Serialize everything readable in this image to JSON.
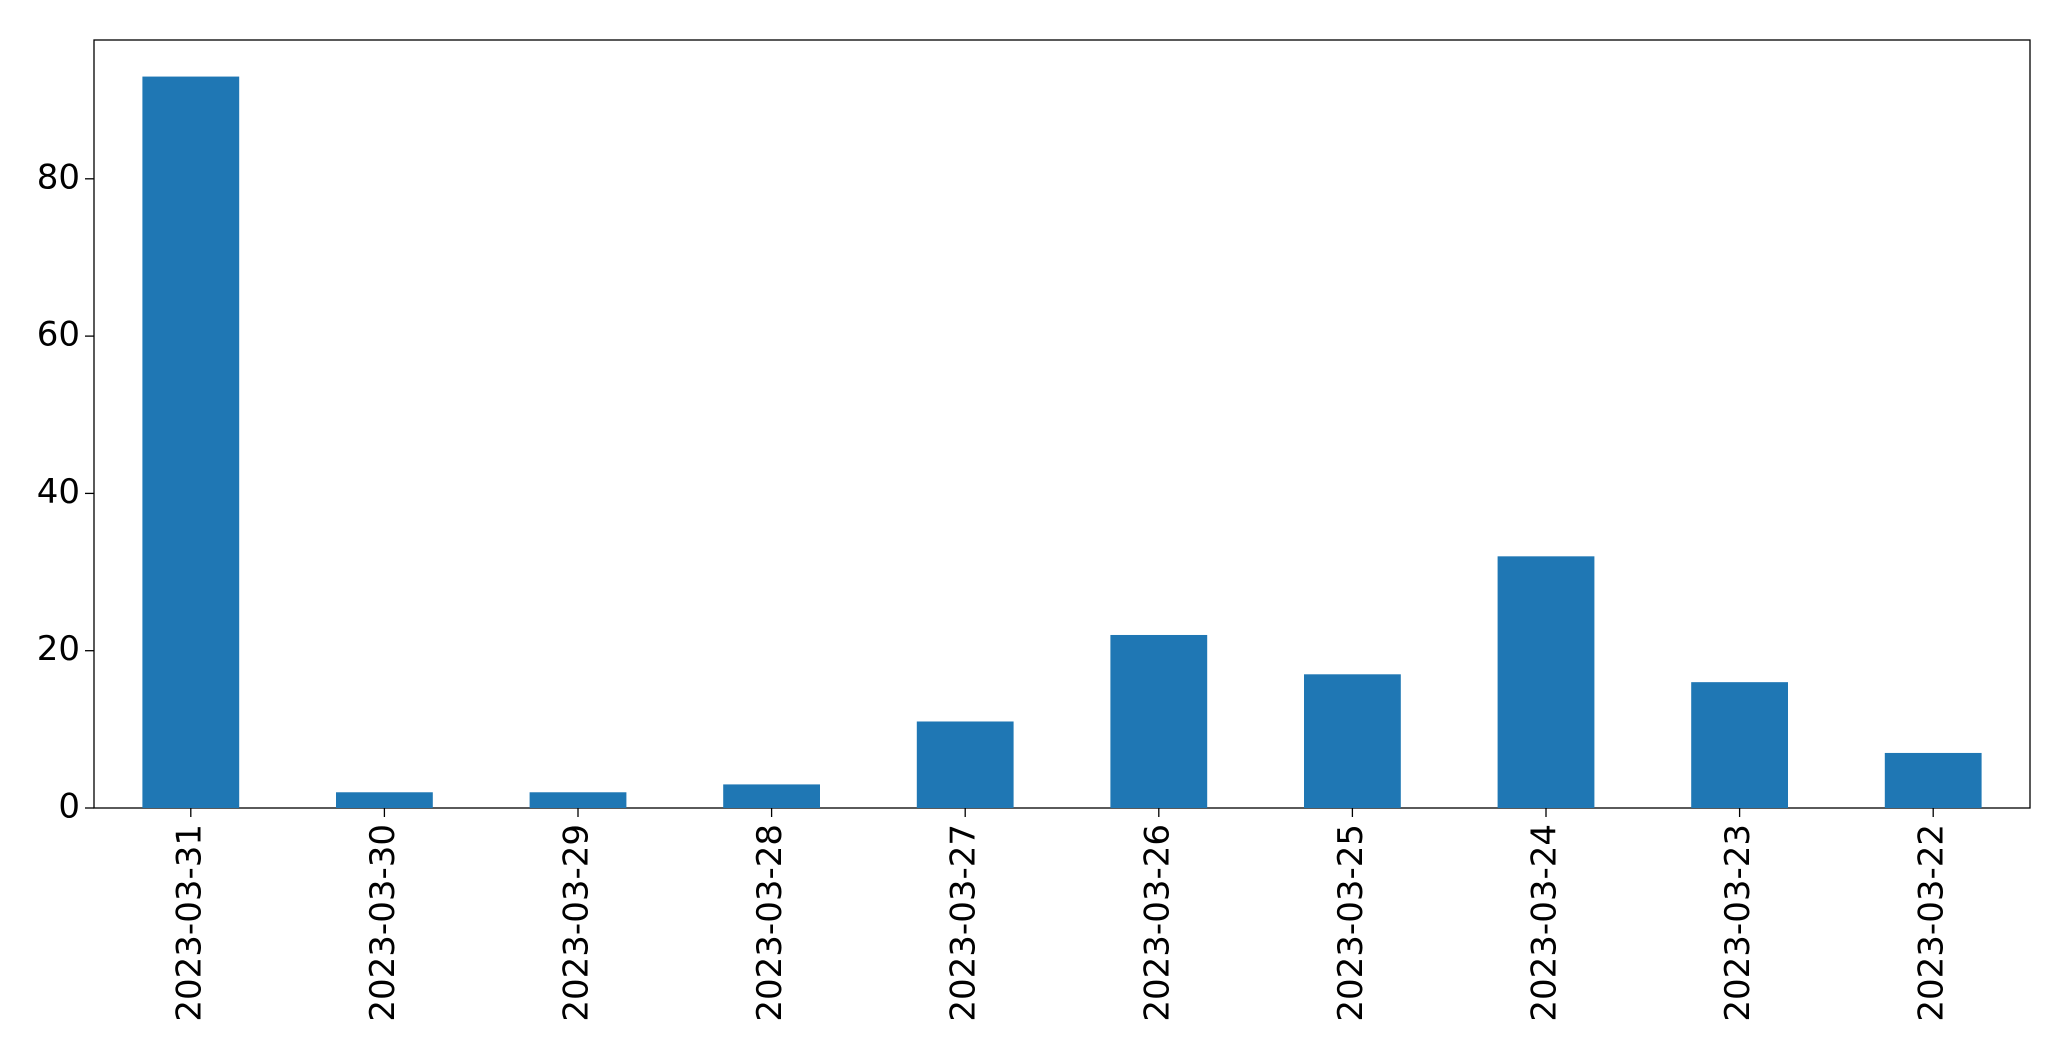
{
  "chart_data": {
    "type": "bar",
    "categories": [
      "2023-03-31",
      "2023-03-30",
      "2023-03-29",
      "2023-03-28",
      "2023-03-27",
      "2023-03-26",
      "2023-03-25",
      "2023-03-24",
      "2023-03-23",
      "2023-03-22"
    ],
    "values": [
      93,
      2,
      2,
      3,
      11,
      22,
      17,
      32,
      16,
      7
    ],
    "color": "#1f77b4",
    "ylim": [
      0,
      97.65
    ],
    "yticks": [
      0,
      20,
      40,
      60,
      80
    ],
    "grid": false
  }
}
